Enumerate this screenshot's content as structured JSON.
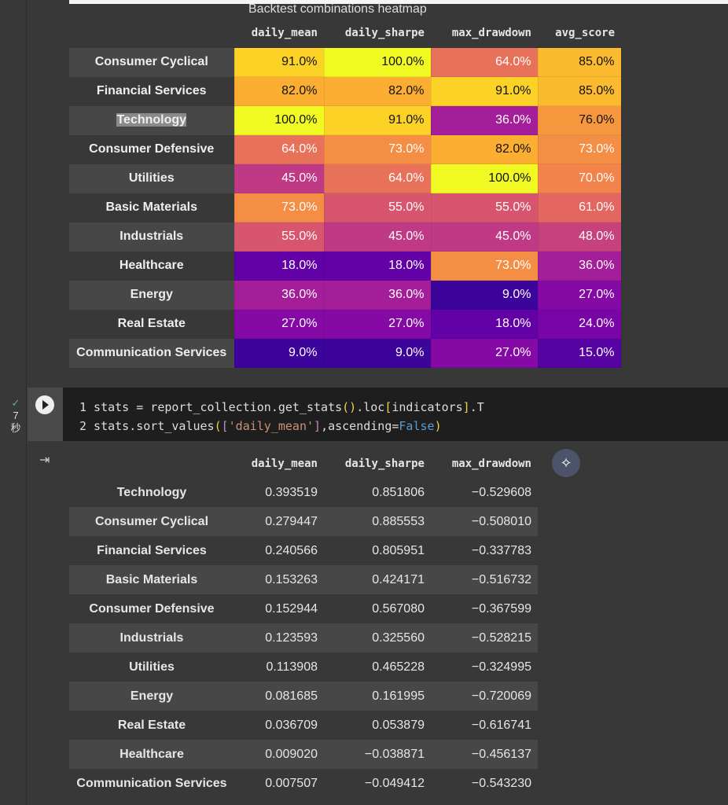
{
  "heatmap": {
    "title": "Backtest combinations heatmap",
    "colormap": "plasma",
    "columns": [
      "daily_mean",
      "daily_sharpe",
      "max_drawdown",
      "avg_score"
    ],
    "rows": [
      {
        "label": "Consumer Cyclical",
        "values": [
          91,
          100,
          64,
          85
        ],
        "display": [
          "91.0%",
          "100.0%",
          "64.0%",
          "85.0%"
        ]
      },
      {
        "label": "Financial Services",
        "values": [
          82,
          82,
          91,
          85
        ],
        "display": [
          "82.0%",
          "82.0%",
          "91.0%",
          "85.0%"
        ]
      },
      {
        "label": "Technology",
        "values": [
          100,
          91,
          36,
          76
        ],
        "display": [
          "100.0%",
          "91.0%",
          "36.0%",
          "76.0%"
        ],
        "selected": true
      },
      {
        "label": "Consumer Defensive",
        "values": [
          64,
          73,
          82,
          73
        ],
        "display": [
          "64.0%",
          "73.0%",
          "82.0%",
          "73.0%"
        ]
      },
      {
        "label": "Utilities",
        "values": [
          45,
          64,
          100,
          70
        ],
        "display": [
          "45.0%",
          "64.0%",
          "100.0%",
          "70.0%"
        ]
      },
      {
        "label": "Basic Materials",
        "values": [
          73,
          55,
          55,
          61
        ],
        "display": [
          "73.0%",
          "55.0%",
          "55.0%",
          "61.0%"
        ]
      },
      {
        "label": "Industrials",
        "values": [
          55,
          45,
          45,
          48
        ],
        "display": [
          "55.0%",
          "45.0%",
          "45.0%",
          "48.0%"
        ]
      },
      {
        "label": "Healthcare",
        "values": [
          18,
          18,
          73,
          36
        ],
        "display": [
          "18.0%",
          "18.0%",
          "73.0%",
          "36.0%"
        ]
      },
      {
        "label": "Energy",
        "values": [
          36,
          36,
          9,
          27
        ],
        "display": [
          "36.0%",
          "36.0%",
          "9.0%",
          "27.0%"
        ]
      },
      {
        "label": "Real Estate",
        "values": [
          27,
          27,
          18,
          24
        ],
        "display": [
          "27.0%",
          "27.0%",
          "18.0%",
          "24.0%"
        ]
      },
      {
        "label": "Communication Services",
        "values": [
          9,
          9,
          27,
          15
        ],
        "display": [
          "9.0%",
          "9.0%",
          "27.0%",
          "15.0%"
        ]
      }
    ]
  },
  "code_cell": {
    "status_check": "✓",
    "exec_time": "7",
    "exec_unit": "秒",
    "line_numbers": [
      "1",
      "2"
    ]
  },
  "stats": {
    "columns": [
      "daily_mean",
      "daily_sharpe",
      "max_drawdown"
    ],
    "rows": [
      {
        "label": "Technology",
        "values": [
          "0.393519",
          "0.851806",
          "−0.529608"
        ]
      },
      {
        "label": "Consumer Cyclical",
        "values": [
          "0.279447",
          "0.885553",
          "−0.508010"
        ]
      },
      {
        "label": "Financial Services",
        "values": [
          "0.240566",
          "0.805951",
          "−0.337783"
        ]
      },
      {
        "label": "Basic Materials",
        "values": [
          "0.153263",
          "0.424171",
          "−0.516732"
        ]
      },
      {
        "label": "Consumer Defensive",
        "values": [
          "0.152944",
          "0.567080",
          "−0.367599"
        ]
      },
      {
        "label": "Industrials",
        "values": [
          "0.123593",
          "0.325560",
          "−0.528215"
        ]
      },
      {
        "label": "Utilities",
        "values": [
          "0.113908",
          "0.465228",
          "−0.324995"
        ]
      },
      {
        "label": "Energy",
        "values": [
          "0.081685",
          "0.161995",
          "−0.720069"
        ]
      },
      {
        "label": "Real Estate",
        "values": [
          "0.036709",
          "0.053879",
          "−0.616741"
        ]
      },
      {
        "label": "Healthcare",
        "values": [
          "0.009020",
          "−0.038871",
          "−0.456137"
        ]
      },
      {
        "label": "Communication Services",
        "values": [
          "0.007507",
          "−0.049412",
          "−0.543230"
        ]
      }
    ]
  }
}
